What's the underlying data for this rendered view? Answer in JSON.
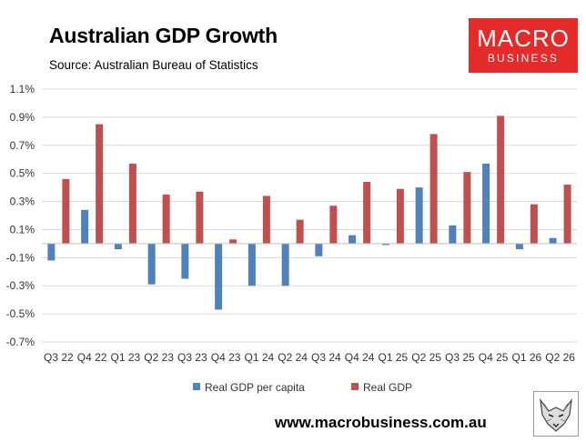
{
  "header": {
    "title": "Australian GDP Growth",
    "source": "Source: Australian Bureau of Statistics"
  },
  "logo": {
    "line1": "MACRO",
    "line2": "BUSINESS",
    "color": "#e52a2a"
  },
  "footer": {
    "url": "www.macrobusiness.com.au",
    "mascot_icon": "wolf-icon"
  },
  "chart_data": {
    "type": "bar",
    "title": "Australian GDP Growth",
    "subtitle": "Source: Australian Bureau of Statistics",
    "xlabel": "",
    "ylabel": "",
    "ylim": [
      -0.7,
      1.1
    ],
    "yticks": [
      "1.1%",
      "0.9%",
      "0.7%",
      "0.5%",
      "0.3%",
      "0.1%",
      "-0.1%",
      "-0.3%",
      "-0.5%",
      "-0.7%"
    ],
    "ytick_values": [
      1.1,
      0.9,
      0.7,
      0.5,
      0.3,
      0.1,
      -0.1,
      -0.3,
      -0.5,
      -0.7
    ],
    "grid": true,
    "legend_position": "bottom",
    "categories": [
      "Q3 22",
      "Q4 22",
      "Q1 23",
      "Q2 23",
      "Q3 23",
      "Q4 23",
      "Q1 24",
      "Q2 24",
      "Q3 24",
      "Q4 24",
      "Q1 25",
      "Q2 25",
      "Q3 25",
      "Q4 25",
      "Q1 26",
      "Q2 26"
    ],
    "series": [
      {
        "name": "Real GDP per capita",
        "color": "#4f81bd",
        "values": [
          -0.12,
          0.24,
          -0.04,
          -0.29,
          -0.25,
          -0.47,
          -0.3,
          -0.3,
          -0.09,
          0.06,
          -0.01,
          0.4,
          0.13,
          0.57,
          -0.04,
          0.04
        ]
      },
      {
        "name": "Real GDP",
        "color": "#c0504d",
        "values": [
          0.46,
          0.85,
          0.57,
          0.35,
          0.37,
          0.03,
          0.34,
          0.17,
          0.27,
          0.44,
          0.39,
          0.78,
          0.51,
          0.91,
          0.28,
          0.42
        ]
      }
    ]
  }
}
